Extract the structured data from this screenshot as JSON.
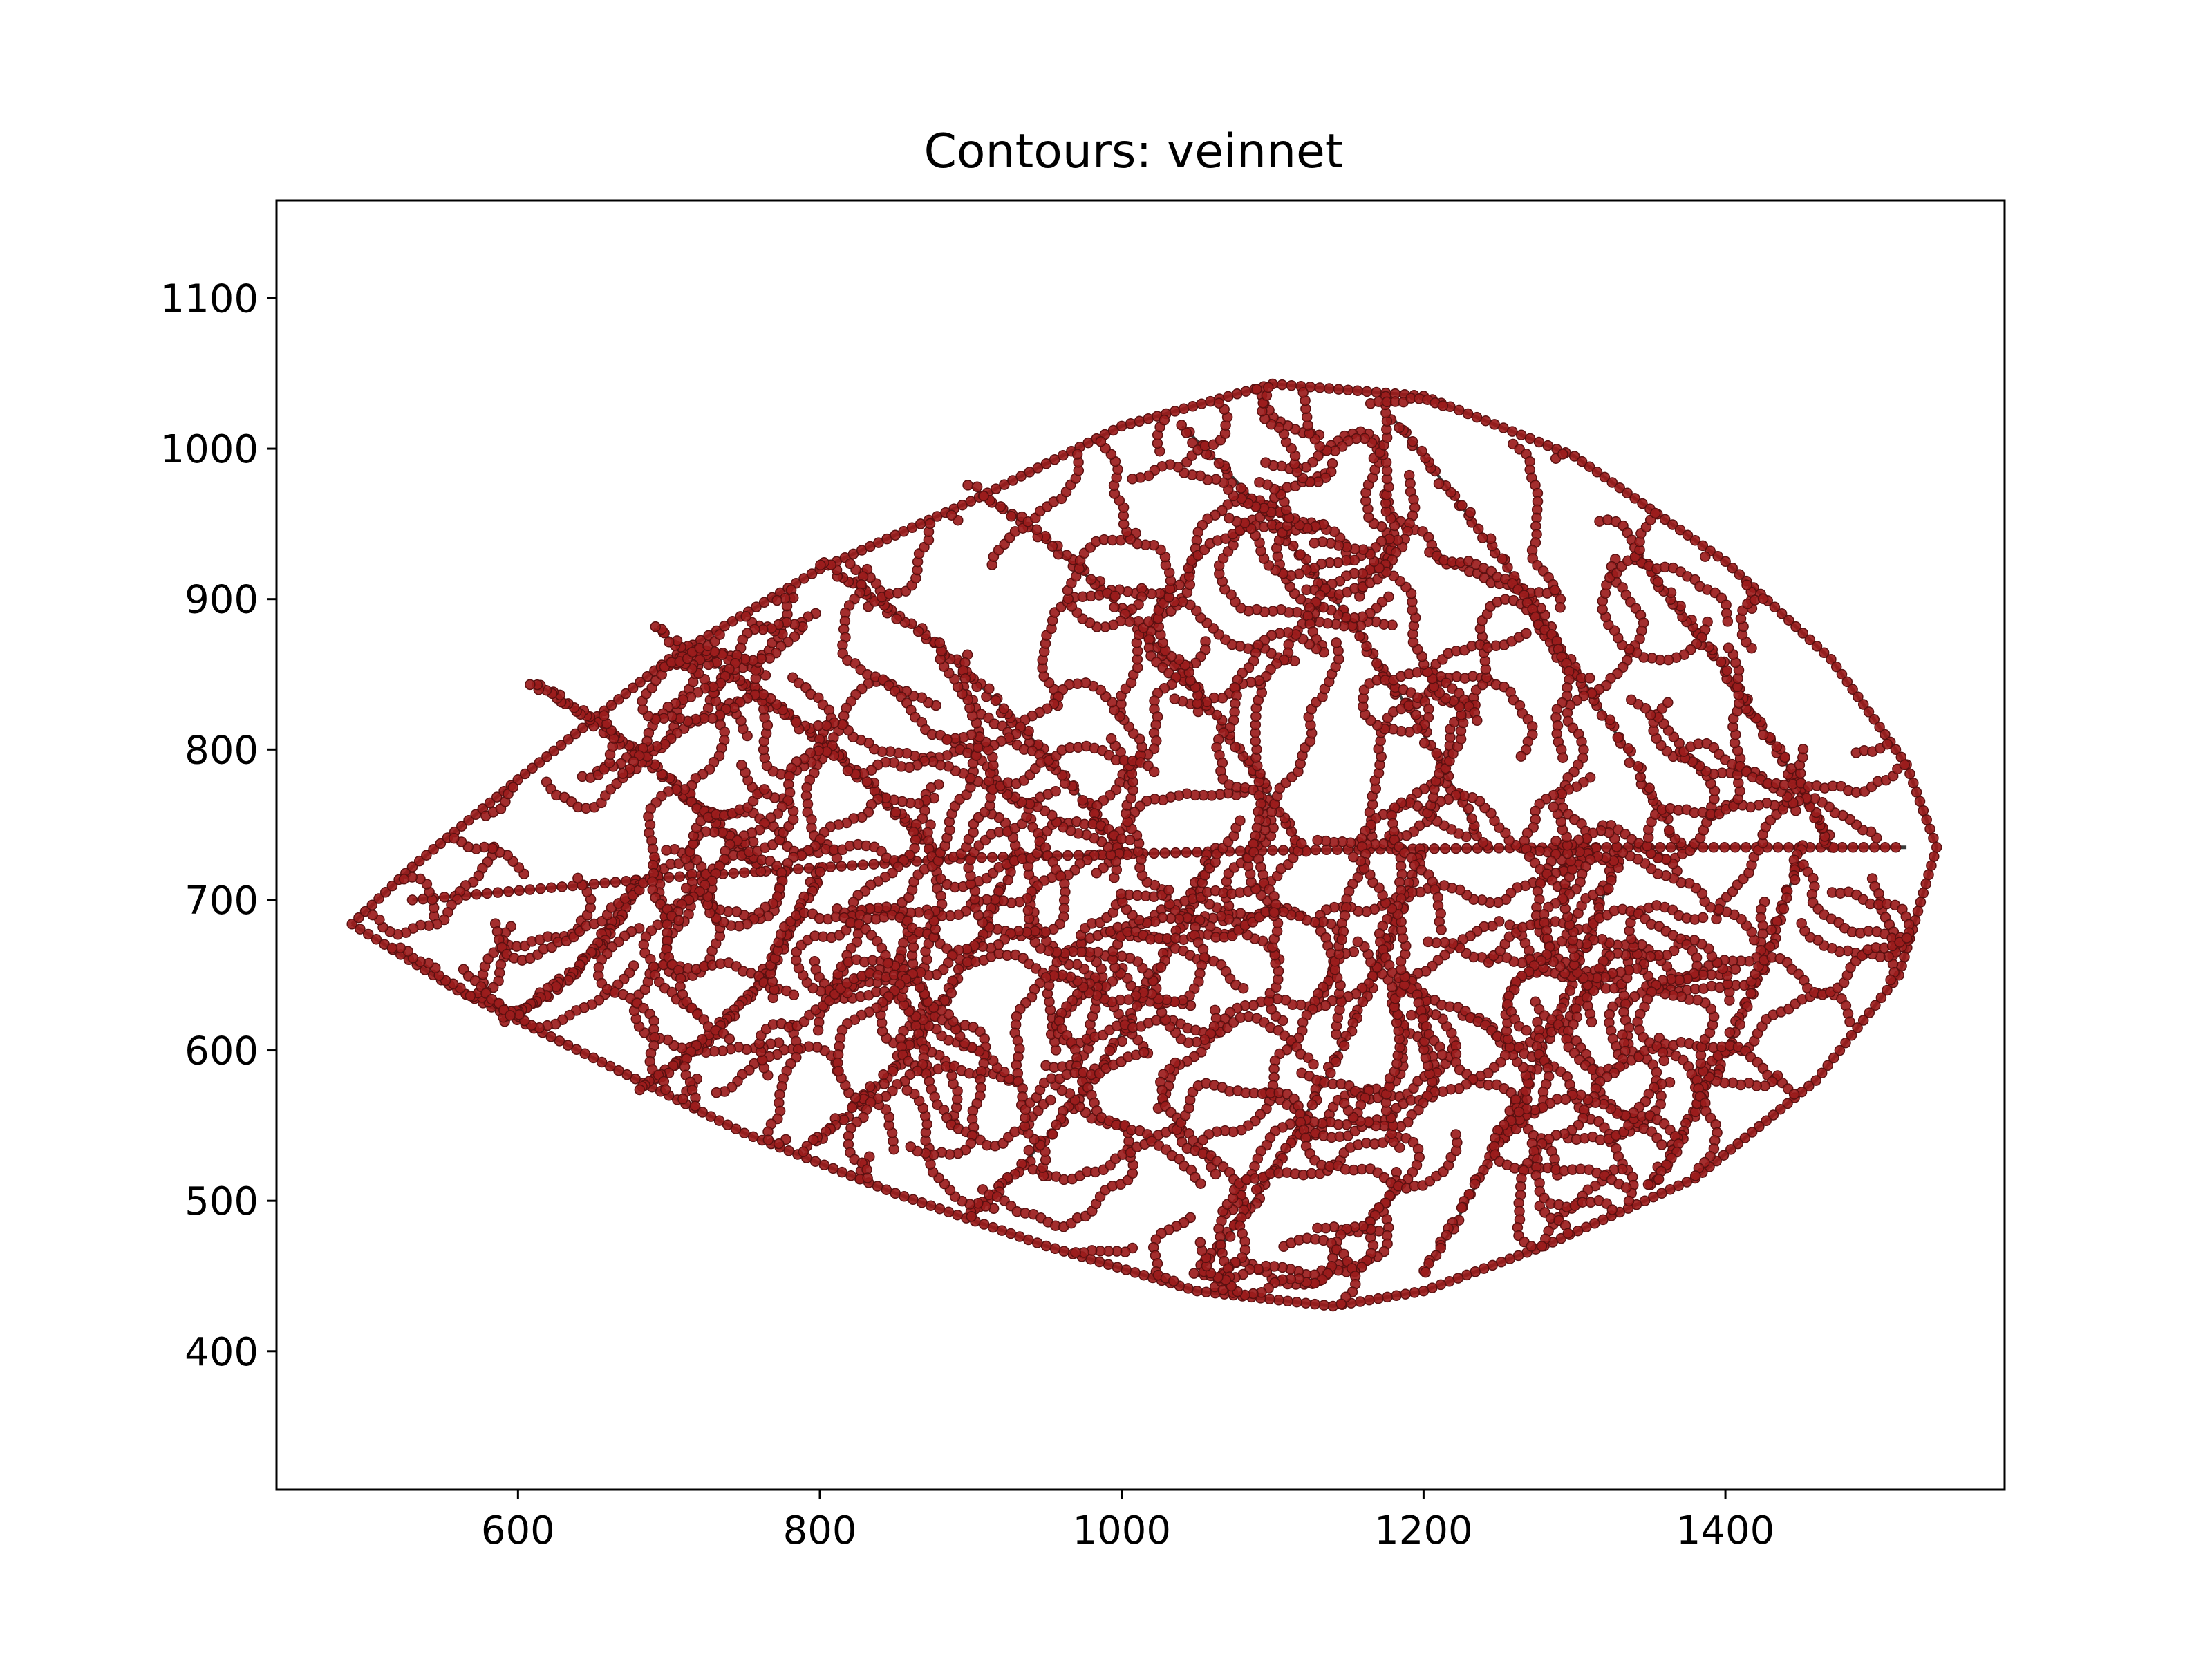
{
  "chart_data": {
    "type": "scatter",
    "title": "Contours: veinnet",
    "xlabel": "",
    "ylabel": "",
    "xlim": [
      440,
      1585
    ],
    "ylim": [
      308,
      1165
    ],
    "x_ticks": [
      600,
      800,
      1000,
      1200,
      1400
    ],
    "y_ticks": [
      400,
      500,
      600,
      700,
      800,
      900,
      1000,
      1100
    ],
    "grid": false,
    "legend": "none",
    "colors": {
      "points": "#9b1c1c",
      "point_edge": "#5a1010",
      "contour": "#3a3a3a"
    },
    "midrib": [
      [
        530,
        700
      ],
      [
        700,
        715
      ],
      [
        900,
        728
      ],
      [
        1100,
        733
      ],
      [
        1300,
        735
      ],
      [
        1520,
        735
      ]
    ],
    "outline": [
      [
        490,
        684
      ],
      [
        530,
        722
      ],
      [
        600,
        780
      ],
      [
        700,
        860
      ],
      [
        800,
        920
      ],
      [
        900,
        965
      ],
      [
        1000,
        1015
      ],
      [
        1100,
        1043
      ],
      [
        1200,
        1035
      ],
      [
        1300,
        995
      ],
      [
        1400,
        925
      ],
      [
        1470,
        860
      ],
      [
        1520,
        790
      ],
      [
        1540,
        735
      ],
      [
        1515,
        650
      ],
      [
        1460,
        580
      ],
      [
        1380,
        515
      ],
      [
        1280,
        470
      ],
      [
        1200,
        440
      ],
      [
        1140,
        430
      ],
      [
        1050,
        440
      ],
      [
        950,
        470
      ],
      [
        850,
        505
      ],
      [
        750,
        545
      ],
      [
        650,
        595
      ],
      [
        560,
        640
      ],
      [
        490,
        684
      ]
    ],
    "secondary_veins": [
      [
        [
          760,
          720
        ],
        [
          700,
          790
        ],
        [
          610,
          845
        ]
      ],
      [
        [
          880,
          727
        ],
        [
          800,
          820
        ],
        [
          690,
          880
        ]
      ],
      [
        [
          1000,
          731
        ],
        [
          920,
          850
        ],
        [
          800,
          925
        ]
      ],
      [
        [
          1120,
          734
        ],
        [
          1030,
          890
        ],
        [
          900,
          975
        ]
      ],
      [
        [
          1240,
          735
        ],
        [
          1160,
          900
        ],
        [
          1040,
          1015
        ]
      ],
      [
        [
          1370,
          735
        ],
        [
          1300,
          870
        ],
        [
          1180,
          1020
        ]
      ],
      [
        [
          1470,
          735
        ],
        [
          1430,
          820
        ],
        [
          1340,
          930
        ]
      ],
      [
        [
          680,
          713
        ],
        [
          650,
          650
        ],
        [
          590,
          620
        ]
      ],
      [
        [
          800,
          722
        ],
        [
          760,
          620
        ],
        [
          680,
          575
        ]
      ],
      [
        [
          930,
          730
        ],
        [
          880,
          600
        ],
        [
          790,
          535
        ]
      ],
      [
        [
          1060,
          733
        ],
        [
          1000,
          580
        ],
        [
          900,
          490
        ]
      ],
      [
        [
          1200,
          735
        ],
        [
          1140,
          560
        ],
        [
          1050,
          450
        ]
      ],
      [
        [
          1330,
          735
        ],
        [
          1280,
          580
        ],
        [
          1200,
          450
        ]
      ],
      [
        [
          1450,
          735
        ],
        [
          1420,
          620
        ],
        [
          1350,
          510
        ]
      ]
    ]
  }
}
